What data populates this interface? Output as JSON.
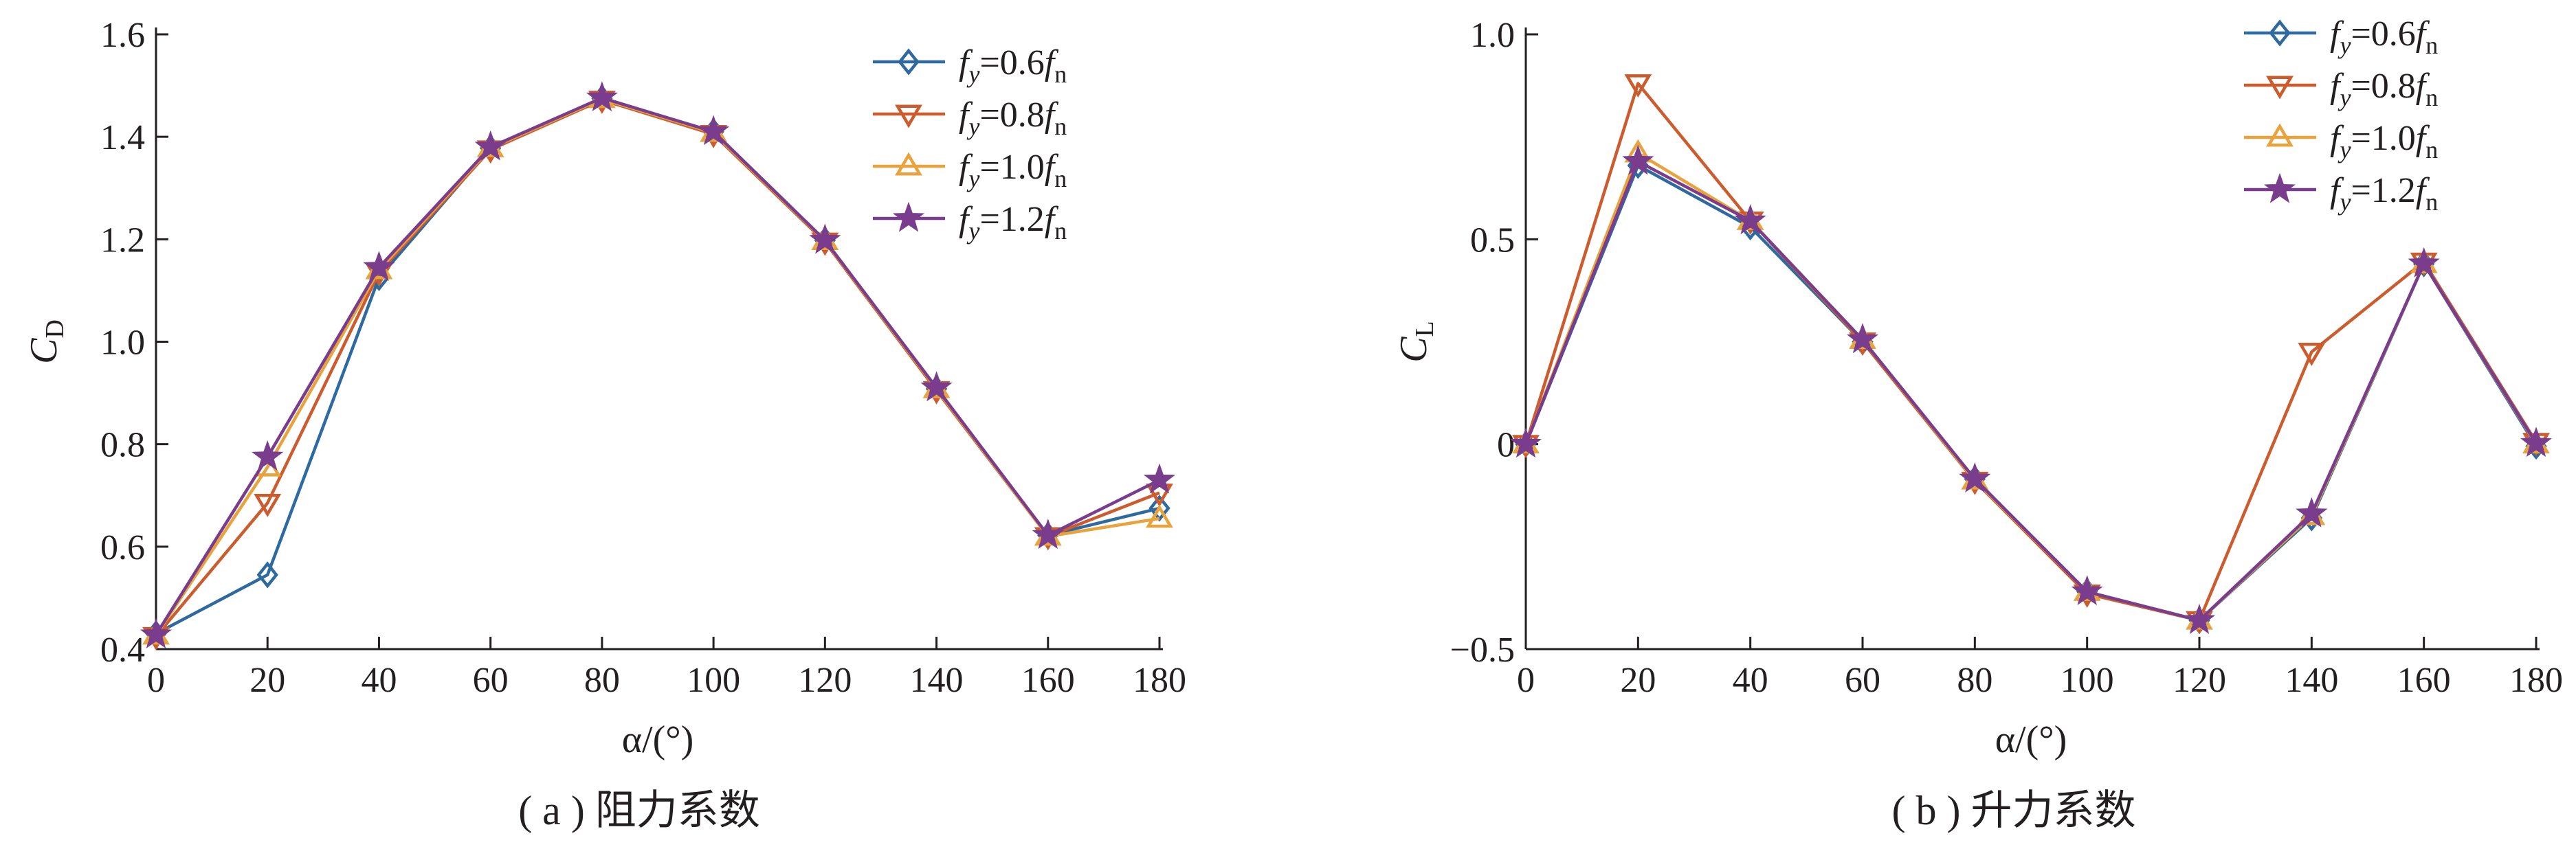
{
  "series_style": [
    {
      "color": "#2e6aa0",
      "marker": "diamond"
    },
    {
      "color": "#cc5b2e",
      "marker": "triangle-down"
    },
    {
      "color": "#e8a33c",
      "marker": "triangle-up"
    },
    {
      "color": "#7a3c8c",
      "marker": "star"
    }
  ],
  "chart_data": [
    {
      "type": "line",
      "caption": "( a ) 阻力系数",
      "ylabel_main": "C",
      "ylabel_sub": "D",
      "xlabel": "α/(°)",
      "x": [
        0,
        20,
        40,
        60,
        80,
        100,
        120,
        140,
        160,
        180
      ],
      "xticks": [
        "0",
        "20",
        "40",
        "60",
        "80",
        "100",
        "120",
        "140",
        "160",
        "180"
      ],
      "xlim": [
        0,
        180
      ],
      "ylim": [
        0.4,
        1.6
      ],
      "yticks": [
        0.4,
        0.6,
        0.8,
        1.0,
        1.2,
        1.4,
        1.6
      ],
      "yticklabels": [
        "0.4",
        "0.6",
        "0.8",
        "1.0",
        "1.2",
        "1.4",
        "1.6"
      ],
      "legend_position": "top-right",
      "series": [
        {
          "name": "fy=0.6fn",
          "legend": {
            "f1": "f",
            "s1": "y",
            "mid": "=0.6",
            "f2": "f",
            "s2": "n"
          },
          "values": [
            0.43,
            0.545,
            1.125,
            1.378,
            1.475,
            1.41,
            1.198,
            0.908,
            0.622,
            0.675
          ]
        },
        {
          "name": "fy=0.8fn",
          "legend": {
            "f1": "f",
            "s1": "y",
            "mid": "=0.8",
            "f2": "f",
            "s2": "n"
          },
          "values": [
            0.425,
            0.685,
            1.135,
            1.375,
            1.472,
            1.405,
            1.195,
            0.905,
            0.62,
            0.705
          ]
        },
        {
          "name": "fy=1.0fn",
          "legend": {
            "f1": "f",
            "s1": "y",
            "mid": "=1.0",
            "f2": "f",
            "s2": "n"
          },
          "values": [
            0.427,
            0.755,
            1.14,
            1.378,
            1.474,
            1.408,
            1.197,
            0.908,
            0.62,
            0.655
          ]
        },
        {
          "name": "fy=1.2fn",
          "legend": {
            "f1": "f",
            "s1": "y",
            "mid": "=1.2",
            "f2": "f",
            "s2": "n"
          },
          "values": [
            0.428,
            0.775,
            1.145,
            1.38,
            1.476,
            1.41,
            1.198,
            0.91,
            0.622,
            0.73
          ]
        }
      ]
    },
    {
      "type": "line",
      "caption": "( b ) 升力系数",
      "ylabel_main": "C",
      "ylabel_sub": "L",
      "xlabel": "α/(°)",
      "x": [
        0,
        20,
        40,
        60,
        80,
        100,
        120,
        140,
        160,
        180
      ],
      "xticks": [
        "0",
        "20",
        "40",
        "60",
        "80",
        "100",
        "120",
        "140",
        "160",
        "180"
      ],
      "xlim": [
        0,
        180
      ],
      "ylim": [
        -0.5,
        1.0
      ],
      "yticks": [
        -0.5,
        0,
        0.5,
        1.0
      ],
      "yticklabels": [
        "−0.5",
        "0",
        "0.5",
        "1.0"
      ],
      "legend_position": "top-right",
      "series": [
        {
          "name": "fy=0.6fn",
          "legend": {
            "f1": "f",
            "s1": "y",
            "mid": "=0.6",
            "f2": "f",
            "s2": "n"
          },
          "values": [
            0,
            0.68,
            0.53,
            0.25,
            -0.085,
            -0.36,
            -0.43,
            -0.18,
            0.44,
            -0.005
          ]
        },
        {
          "name": "fy=0.8fn",
          "legend": {
            "f1": "f",
            "s1": "y",
            "mid": "=0.8",
            "f2": "f",
            "s2": "n"
          },
          "values": [
            0,
            0.88,
            0.545,
            0.25,
            -0.09,
            -0.365,
            -0.43,
            0.225,
            0.445,
            0.005
          ]
        },
        {
          "name": "fy=1.0fn",
          "legend": {
            "f1": "f",
            "s1": "y",
            "mid": "=1.0",
            "f2": "f",
            "s2": "n"
          },
          "values": [
            0,
            0.71,
            0.545,
            0.255,
            -0.088,
            -0.36,
            -0.43,
            -0.175,
            0.44,
            0
          ]
        },
        {
          "name": "fy=1.2fn",
          "legend": {
            "f1": "f",
            "s1": "y",
            "mid": "=1.2",
            "f2": "f",
            "s2": "n"
          },
          "values": [
            0,
            0.69,
            0.545,
            0.255,
            -0.085,
            -0.36,
            -0.43,
            -0.17,
            0.44,
            0.002
          ]
        }
      ]
    }
  ]
}
